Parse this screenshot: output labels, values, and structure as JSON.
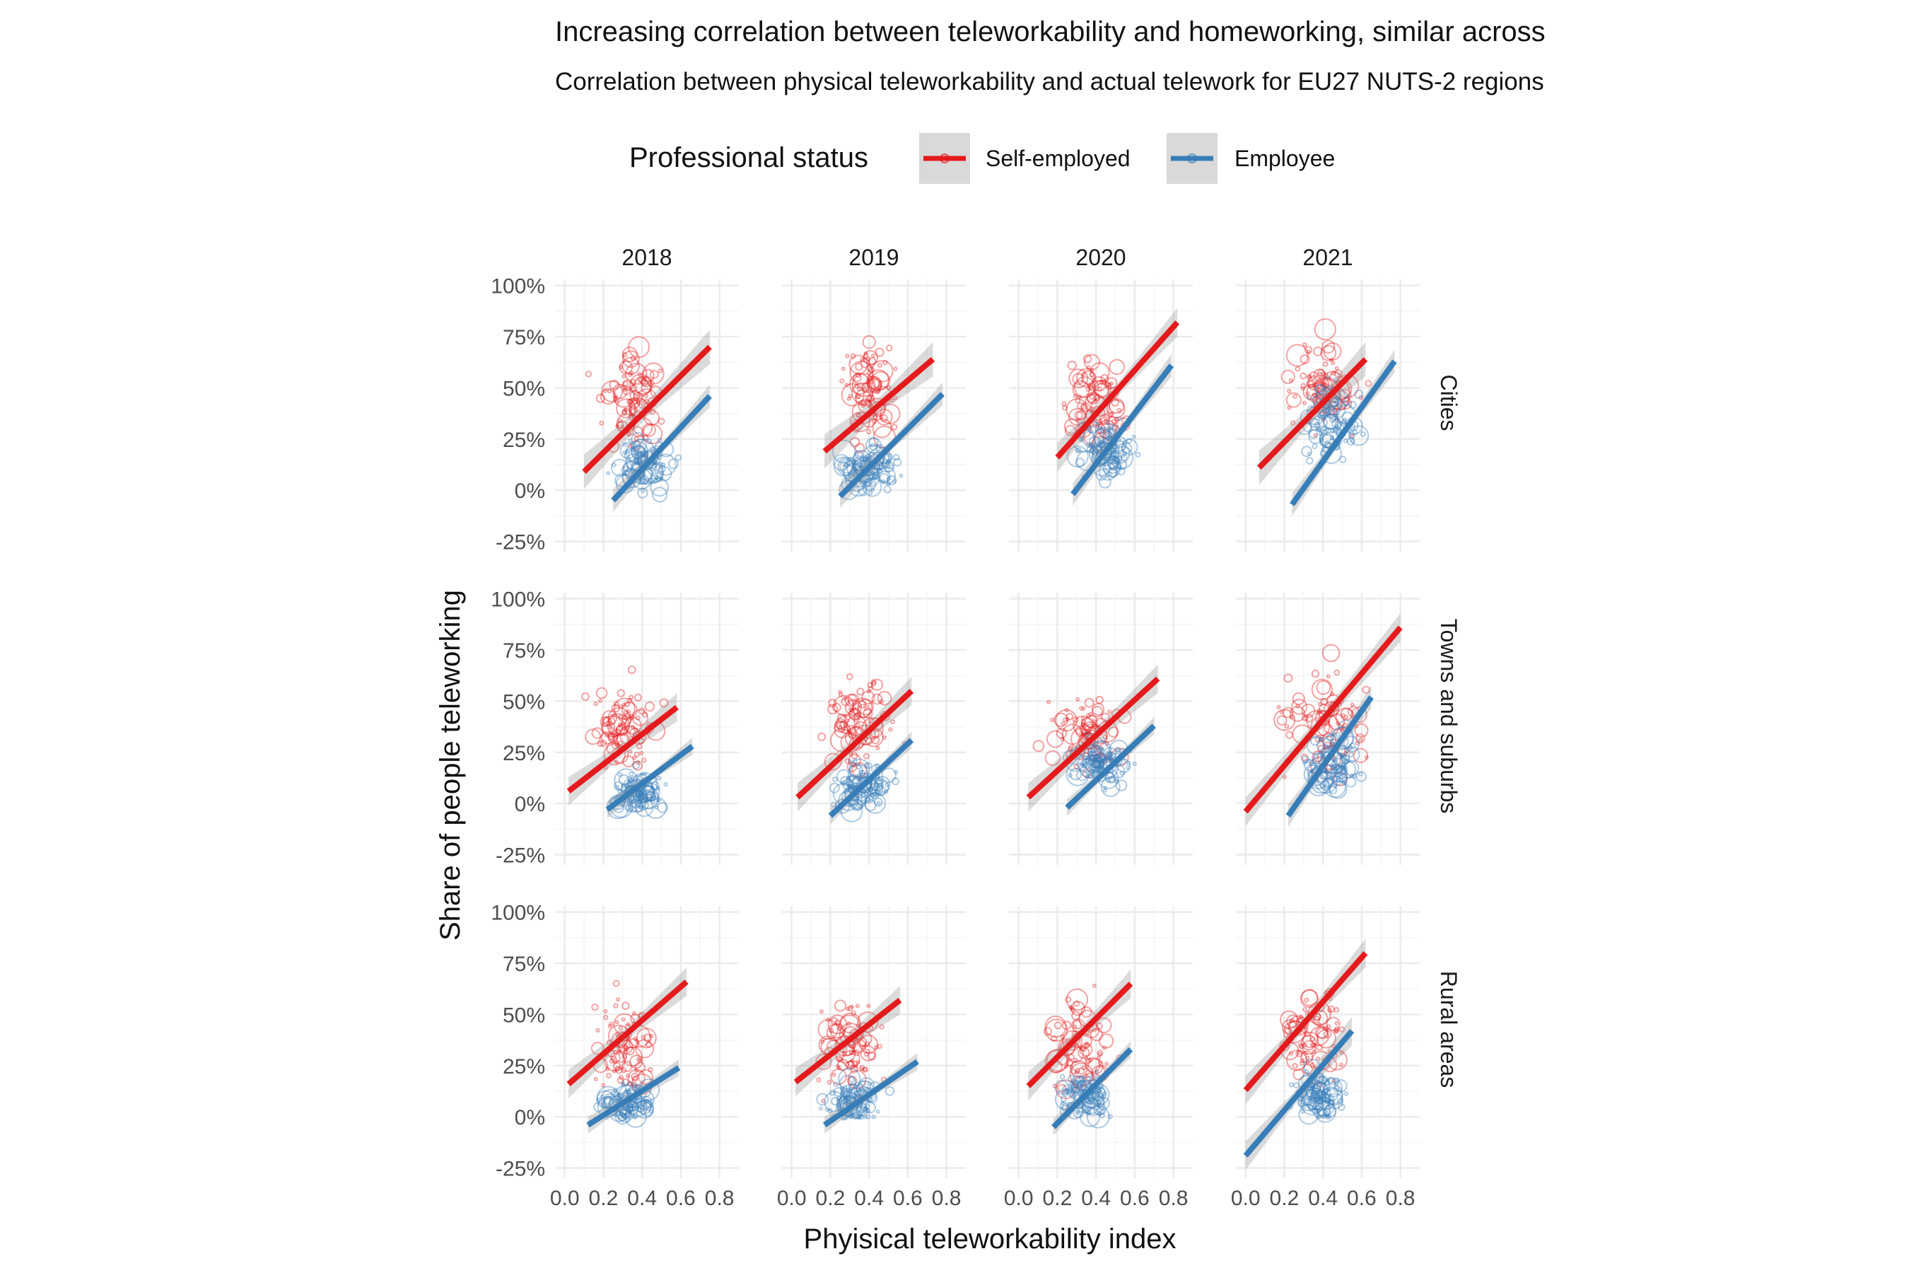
{
  "chart_data": {
    "type": "scatter",
    "title": "Increasing correlation between teleworkability and homeworking, similar across",
    "subtitle": "Correlation between physical teleworkability and actual telework for EU27 NUTS-2 regions",
    "xlabel": "Phyisical teleworkability index",
    "ylabel": "Share of people teleworking",
    "legend": {
      "title": "Professional status",
      "position": "top",
      "items": [
        {
          "name": "Self-employed",
          "color": "#e41a1c"
        },
        {
          "name": "Employee",
          "color": "#377eb8"
        }
      ]
    },
    "columns": [
      "2018",
      "2019",
      "2020",
      "2021"
    ],
    "rows": [
      "Cities",
      "Towns and suburbs",
      "Rural areas"
    ],
    "x_ticks": [
      "0.0",
      "0.2",
      "0.4",
      "0.6",
      "0.8"
    ],
    "xlim": [
      -0.05,
      0.9
    ],
    "y_ticks": [
      "-25%",
      "0%",
      "25%",
      "50%",
      "75%",
      "100%"
    ],
    "ylim": [
      -0.3,
      1.03
    ],
    "grid": true,
    "facets": [
      {
        "col": "2018",
        "row": "Cities",
        "series": [
          {
            "name": "Self-employed",
            "fit": [
              [
                0.1,
                0.09
              ],
              [
                0.75,
                0.7
              ]
            ],
            "band": 0.06,
            "cloud": {
              "x": [
                0.05,
                0.6
              ],
              "y": [
                0.0,
                0.88
              ],
              "center": [
                0.35,
                0.45
              ],
              "n": 90
            }
          },
          {
            "name": "Employee",
            "fit": [
              [
                0.25,
                -0.05
              ],
              [
                0.75,
                0.46
              ]
            ],
            "band": 0.04,
            "cloud": {
              "x": [
                0.2,
                0.72
              ],
              "y": [
                -0.03,
                0.45
              ],
              "center": [
                0.42,
                0.12
              ],
              "n": 110
            }
          }
        ]
      },
      {
        "col": "2019",
        "row": "Cities",
        "series": [
          {
            "name": "Self-employed",
            "fit": [
              [
                0.17,
                0.19
              ],
              [
                0.73,
                0.64
              ]
            ],
            "band": 0.06,
            "cloud": {
              "x": [
                0.15,
                0.65
              ],
              "y": [
                0.0,
                0.87
              ],
              "center": [
                0.4,
                0.45
              ],
              "n": 90
            }
          },
          {
            "name": "Employee",
            "fit": [
              [
                0.25,
                -0.03
              ],
              [
                0.78,
                0.47
              ]
            ],
            "band": 0.04,
            "cloud": {
              "x": [
                0.2,
                0.75
              ],
              "y": [
                -0.02,
                0.4
              ],
              "center": [
                0.4,
                0.1
              ],
              "n": 110
            }
          }
        ]
      },
      {
        "col": "2020",
        "row": "Cities",
        "series": [
          {
            "name": "Self-employed",
            "fit": [
              [
                0.2,
                0.16
              ],
              [
                0.82,
                0.82
              ]
            ],
            "band": 0.05,
            "cloud": {
              "x": [
                0.1,
                0.7
              ],
              "y": [
                0.1,
                0.8
              ],
              "center": [
                0.4,
                0.45
              ],
              "n": 90
            }
          },
          {
            "name": "Employee",
            "fit": [
              [
                0.28,
                -0.02
              ],
              [
                0.79,
                0.61
              ]
            ],
            "band": 0.04,
            "cloud": {
              "x": [
                0.25,
                0.78
              ],
              "y": [
                0.0,
                0.5
              ],
              "center": [
                0.45,
                0.2
              ],
              "n": 110
            }
          }
        ]
      },
      {
        "col": "2021",
        "row": "Cities",
        "series": [
          {
            "name": "Self-employed",
            "fit": [
              [
                0.07,
                0.11
              ],
              [
                0.62,
                0.64
              ]
            ],
            "band": 0.06,
            "cloud": {
              "x": [
                0.05,
                0.7
              ],
              "y": [
                0.1,
                0.85
              ],
              "center": [
                0.4,
                0.5
              ],
              "n": 90
            }
          },
          {
            "name": "Employee",
            "fit": [
              [
                0.24,
                -0.07
              ],
              [
                0.77,
                0.63
              ]
            ],
            "band": 0.04,
            "cloud": {
              "x": [
                0.25,
                0.75
              ],
              "y": [
                0.05,
                0.7
              ],
              "center": [
                0.45,
                0.35
              ],
              "n": 110
            }
          }
        ]
      },
      {
        "col": "2018",
        "row": "Towns and suburbs",
        "series": [
          {
            "name": "Self-employed",
            "fit": [
              [
                0.02,
                0.06
              ],
              [
                0.58,
                0.47
              ]
            ],
            "band": 0.05,
            "cloud": {
              "x": [
                0.0,
                0.6
              ],
              "y": [
                0.0,
                0.78
              ],
              "center": [
                0.3,
                0.35
              ],
              "n": 90
            }
          },
          {
            "name": "Employee",
            "fit": [
              [
                0.22,
                -0.03
              ],
              [
                0.66,
                0.28
              ]
            ],
            "band": 0.03,
            "cloud": {
              "x": [
                0.15,
                0.62
              ],
              "y": [
                -0.02,
                0.35
              ],
              "center": [
                0.38,
                0.05
              ],
              "n": 110
            }
          }
        ]
      },
      {
        "col": "2019",
        "row": "Towns and suburbs",
        "series": [
          {
            "name": "Self-employed",
            "fit": [
              [
                0.03,
                0.03
              ],
              [
                0.62,
                0.55
              ]
            ],
            "band": 0.05,
            "cloud": {
              "x": [
                0.0,
                0.65
              ],
              "y": [
                0.0,
                0.8
              ],
              "center": [
                0.35,
                0.4
              ],
              "n": 90
            }
          },
          {
            "name": "Employee",
            "fit": [
              [
                0.2,
                -0.06
              ],
              [
                0.62,
                0.31
              ]
            ],
            "band": 0.03,
            "cloud": {
              "x": [
                0.15,
                0.65
              ],
              "y": [
                -0.05,
                0.35
              ],
              "center": [
                0.38,
                0.08
              ],
              "n": 110
            }
          }
        ]
      },
      {
        "col": "2020",
        "row": "Towns and suburbs",
        "series": [
          {
            "name": "Self-employed",
            "fit": [
              [
                0.05,
                0.03
              ],
              [
                0.72,
                0.61
              ]
            ],
            "band": 0.05,
            "cloud": {
              "x": [
                0.02,
                0.7
              ],
              "y": [
                0.0,
                0.73
              ],
              "center": [
                0.35,
                0.35
              ],
              "n": 90
            }
          },
          {
            "name": "Employee",
            "fit": [
              [
                0.25,
                -0.02
              ],
              [
                0.7,
                0.38
              ]
            ],
            "band": 0.03,
            "cloud": {
              "x": [
                0.2,
                0.7
              ],
              "y": [
                0.0,
                0.4
              ],
              "center": [
                0.42,
                0.2
              ],
              "n": 110
            }
          }
        ]
      },
      {
        "col": "2021",
        "row": "Towns and suburbs",
        "series": [
          {
            "name": "Self-employed",
            "fit": [
              [
                0.0,
                -0.04
              ],
              [
                0.8,
                0.86
              ]
            ],
            "band": 0.05,
            "cloud": {
              "x": [
                0.0,
                0.78
              ],
              "y": [
                0.0,
                0.95
              ],
              "center": [
                0.4,
                0.4
              ],
              "n": 90
            }
          },
          {
            "name": "Employee",
            "fit": [
              [
                0.22,
                -0.06
              ],
              [
                0.65,
                0.52
              ]
            ],
            "band": 0.04,
            "cloud": {
              "x": [
                0.2,
                0.7
              ],
              "y": [
                0.0,
                0.5
              ],
              "center": [
                0.45,
                0.2
              ],
              "n": 110
            }
          }
        ]
      },
      {
        "col": "2018",
        "row": "Rural areas",
        "series": [
          {
            "name": "Self-employed",
            "fit": [
              [
                0.02,
                0.16
              ],
              [
                0.63,
                0.66
              ]
            ],
            "band": 0.05,
            "cloud": {
              "x": [
                0.0,
                0.65
              ],
              "y": [
                0.0,
                0.86
              ],
              "center": [
                0.3,
                0.35
              ],
              "n": 90
            }
          },
          {
            "name": "Employee",
            "fit": [
              [
                0.12,
                -0.04
              ],
              [
                0.59,
                0.24
              ]
            ],
            "band": 0.03,
            "cloud": {
              "x": [
                0.15,
                0.6
              ],
              "y": [
                0.0,
                0.35
              ],
              "center": [
                0.32,
                0.07
              ],
              "n": 110
            }
          }
        ]
      },
      {
        "col": "2019",
        "row": "Rural areas",
        "series": [
          {
            "name": "Self-employed",
            "fit": [
              [
                0.02,
                0.17
              ],
              [
                0.56,
                0.57
              ]
            ],
            "band": 0.05,
            "cloud": {
              "x": [
                0.0,
                0.6
              ],
              "y": [
                0.0,
                0.82
              ],
              "center": [
                0.3,
                0.35
              ],
              "n": 90
            }
          },
          {
            "name": "Employee",
            "fit": [
              [
                0.17,
                -0.04
              ],
              [
                0.65,
                0.27
              ]
            ],
            "band": 0.03,
            "cloud": {
              "x": [
                0.15,
                0.62
              ],
              "y": [
                0.0,
                0.4
              ],
              "center": [
                0.32,
                0.08
              ],
              "n": 110
            }
          }
        ]
      },
      {
        "col": "2020",
        "row": "Rural areas",
        "series": [
          {
            "name": "Self-employed",
            "fit": [
              [
                0.05,
                0.15
              ],
              [
                0.58,
                0.65
              ]
            ],
            "band": 0.05,
            "cloud": {
              "x": [
                0.0,
                0.6
              ],
              "y": [
                0.0,
                0.88
              ],
              "center": [
                0.3,
                0.35
              ],
              "n": 90
            }
          },
          {
            "name": "Employee",
            "fit": [
              [
                0.18,
                -0.05
              ],
              [
                0.58,
                0.33
              ]
            ],
            "band": 0.03,
            "cloud": {
              "x": [
                0.15,
                0.62
              ],
              "y": [
                0.0,
                0.42
              ],
              "center": [
                0.35,
                0.1
              ],
              "n": 110
            }
          }
        ]
      },
      {
        "col": "2021",
        "row": "Rural areas",
        "series": [
          {
            "name": "Self-employed",
            "fit": [
              [
                0.0,
                0.13
              ],
              [
                0.62,
                0.8
              ]
            ],
            "band": 0.05,
            "cloud": {
              "x": [
                0.0,
                0.7
              ],
              "y": [
                0.0,
                0.85
              ],
              "center": [
                0.35,
                0.4
              ],
              "n": 90
            }
          },
          {
            "name": "Employee",
            "fit": [
              [
                0.0,
                -0.19
              ],
              [
                0.55,
                0.42
              ]
            ],
            "band": 0.05,
            "cloud": {
              "x": [
                0.2,
                0.62
              ],
              "y": [
                0.0,
                0.42
              ],
              "center": [
                0.38,
                0.1
              ],
              "n": 110
            }
          }
        ]
      }
    ]
  }
}
